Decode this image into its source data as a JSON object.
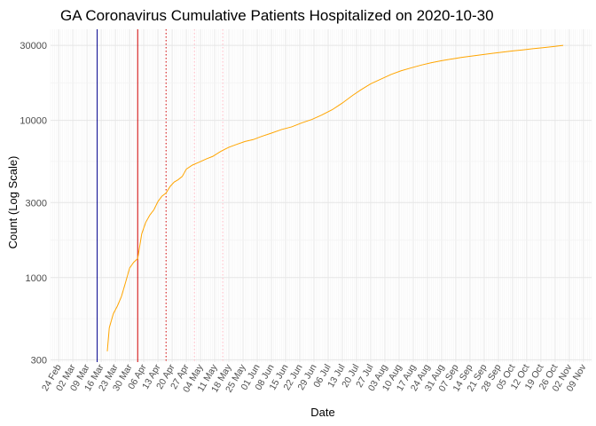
{
  "chart_data": {
    "type": "line",
    "title": "GA Coronavirus Cumulative Patients Hospitalized on 2020-10-30",
    "xlabel": "Date",
    "ylabel": "Count (Log Scale)",
    "y_scale": "log10",
    "ylim": [
      290,
      38000
    ],
    "xlim": [
      "2020-02-20",
      "2020-11-13"
    ],
    "y_ticks": [
      300,
      1000,
      3000,
      10000,
      30000
    ],
    "y_tick_labels": [
      "300",
      "1000",
      "3000",
      "10000",
      "30000"
    ],
    "x_ticks": [
      "2020-02-24",
      "2020-03-02",
      "2020-03-09",
      "2020-03-16",
      "2020-03-23",
      "2020-03-30",
      "2020-04-06",
      "2020-04-13",
      "2020-04-20",
      "2020-04-27",
      "2020-05-04",
      "2020-05-11",
      "2020-05-18",
      "2020-05-25",
      "2020-06-01",
      "2020-06-08",
      "2020-06-15",
      "2020-06-22",
      "2020-06-29",
      "2020-07-06",
      "2020-07-13",
      "2020-07-20",
      "2020-07-27",
      "2020-08-03",
      "2020-08-10",
      "2020-08-17",
      "2020-08-24",
      "2020-08-31",
      "2020-09-07",
      "2020-09-14",
      "2020-09-21",
      "2020-09-28",
      "2020-10-05",
      "2020-10-12",
      "2020-10-19",
      "2020-10-26",
      "2020-11-02",
      "2020-11-09"
    ],
    "x_tick_labels": [
      "24 Feb",
      "02 Mar",
      "09 Mar",
      "16 Mar",
      "23 Mar",
      "30 Mar",
      "06 Apr",
      "13 Apr",
      "20 Apr",
      "27 Apr",
      "04 May",
      "11 May",
      "18 May",
      "25 May",
      "01 Jun",
      "08 Jun",
      "15 Jun",
      "22 Jun",
      "29 Jun",
      "06 Jul",
      "13 Jul",
      "20 Jul",
      "27 Jul",
      "03 Aug",
      "10 Aug",
      "17 Aug",
      "24 Aug",
      "31 Aug",
      "07 Sep",
      "14 Sep",
      "21 Sep",
      "28 Sep",
      "05 Oct",
      "12 Oct",
      "19 Oct",
      "26 Oct",
      "02 Nov",
      "09 Nov"
    ],
    "grid": true,
    "series": [
      {
        "color": "#FFA500",
        "points": [
          [
            "2020-03-19",
            340
          ],
          [
            "2020-03-20",
            480
          ],
          [
            "2020-03-22",
            590
          ],
          [
            "2020-03-24",
            660
          ],
          [
            "2020-03-26",
            760
          ],
          [
            "2020-03-28",
            930
          ],
          [
            "2020-03-30",
            1150
          ],
          [
            "2020-04-01",
            1250
          ],
          [
            "2020-04-03",
            1320
          ],
          [
            "2020-04-05",
            1900
          ],
          [
            "2020-04-07",
            2250
          ],
          [
            "2020-04-09",
            2500
          ],
          [
            "2020-04-11",
            2700
          ],
          [
            "2020-04-13",
            3050
          ],
          [
            "2020-04-15",
            3300
          ],
          [
            "2020-04-17",
            3450
          ],
          [
            "2020-04-19",
            3800
          ],
          [
            "2020-04-21",
            4050
          ],
          [
            "2020-04-23",
            4200
          ],
          [
            "2020-04-25",
            4400
          ],
          [
            "2020-04-27",
            4900
          ],
          [
            "2020-04-30",
            5200
          ],
          [
            "2020-05-03",
            5400
          ],
          [
            "2020-05-07",
            5700
          ],
          [
            "2020-05-10",
            5900
          ],
          [
            "2020-05-14",
            6350
          ],
          [
            "2020-05-18",
            6750
          ],
          [
            "2020-05-22",
            7050
          ],
          [
            "2020-05-26",
            7350
          ],
          [
            "2020-05-30",
            7550
          ],
          [
            "2020-06-03",
            7900
          ],
          [
            "2020-06-08",
            8300
          ],
          [
            "2020-06-13",
            8750
          ],
          [
            "2020-06-18",
            9100
          ],
          [
            "2020-06-23",
            9650
          ],
          [
            "2020-06-28",
            10150
          ],
          [
            "2020-07-03",
            10850
          ],
          [
            "2020-07-08",
            11700
          ],
          [
            "2020-07-13",
            12900
          ],
          [
            "2020-07-18",
            14400
          ],
          [
            "2020-07-22",
            15600
          ],
          [
            "2020-07-27",
            17100
          ],
          [
            "2020-08-01",
            18300
          ],
          [
            "2020-08-06",
            19600
          ],
          [
            "2020-08-11",
            20700
          ],
          [
            "2020-08-16",
            21600
          ],
          [
            "2020-08-21",
            22500
          ],
          [
            "2020-08-26",
            23300
          ],
          [
            "2020-08-31",
            24000
          ],
          [
            "2020-09-05",
            24600
          ],
          [
            "2020-09-10",
            25200
          ],
          [
            "2020-09-15",
            25700
          ],
          [
            "2020-09-20",
            26200
          ],
          [
            "2020-09-25",
            26700
          ],
          [
            "2020-09-30",
            27200
          ],
          [
            "2020-10-05",
            27700
          ],
          [
            "2020-10-10",
            28100
          ],
          [
            "2020-10-15",
            28600
          ],
          [
            "2020-10-20",
            29000
          ],
          [
            "2020-10-25",
            29500
          ],
          [
            "2020-10-30",
            30000
          ]
        ]
      }
    ],
    "reference_lines": [
      {
        "date": "2020-03-14",
        "color": "#00008B",
        "style": "solid"
      },
      {
        "date": "2020-04-03",
        "color": "#CD0000",
        "style": "solid"
      },
      {
        "date": "2020-04-17",
        "color": "#CD0000",
        "style": "dotted"
      },
      {
        "date": "2020-05-01",
        "color": "#FFB6C1",
        "style": "dotted"
      },
      {
        "date": "2020-05-15",
        "color": "#FFB6C1",
        "style": "dotted"
      }
    ]
  }
}
